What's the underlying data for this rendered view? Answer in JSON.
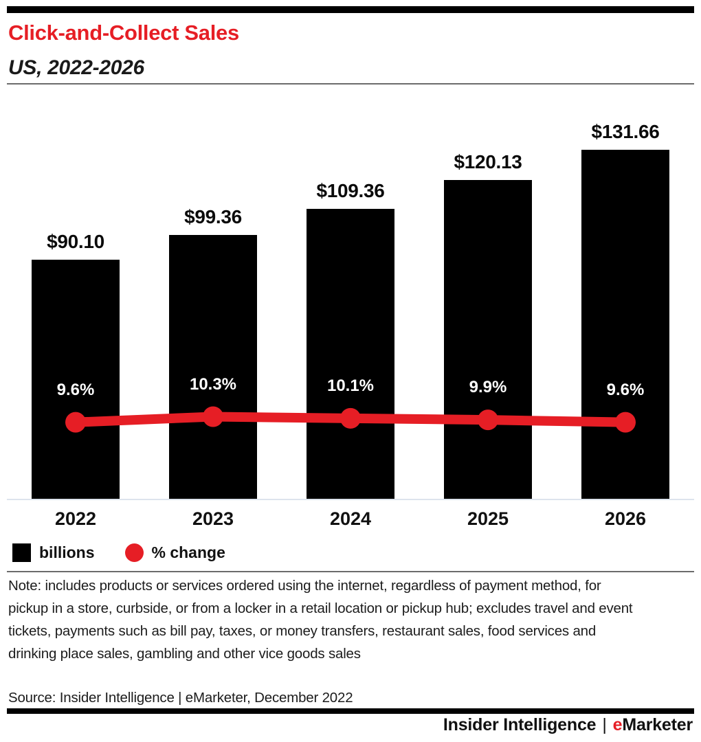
{
  "header": {
    "title": "Click-and-Collect Sales",
    "subtitle": "US, 2022-2026"
  },
  "chart_data": {
    "type": "bar",
    "title": "Click-and-Collect Sales",
    "subtitle": "US, 2022-2026",
    "categories": [
      "2022",
      "2023",
      "2024",
      "2025",
      "2026"
    ],
    "series": [
      {
        "name": "billions",
        "type": "bar",
        "values": [
          90.1,
          99.36,
          109.36,
          120.13,
          131.66
        ],
        "labels": [
          "$90.10",
          "$99.36",
          "$109.36",
          "$120.13",
          "$131.66"
        ],
        "color": "#000000"
      },
      {
        "name": "% change",
        "type": "line",
        "values": [
          9.6,
          10.3,
          10.1,
          9.9,
          9.6
        ],
        "labels": [
          "9.6%",
          "10.3%",
          "10.1%",
          "9.9%",
          "9.6%"
        ],
        "color": "#e61e25"
      }
    ],
    "xlabel": "",
    "ylabel": "",
    "ylim": [
      0,
      140
    ],
    "grid": false,
    "legend_position": "bottom",
    "legend": [
      {
        "label": "billions",
        "swatch": "square",
        "color": "#000000"
      },
      {
        "label": "% change",
        "swatch": "circle",
        "color": "#e61e25"
      }
    ]
  },
  "note": "Note: includes products or services ordered using the internet, regardless of payment method, for pickup in a store, curbside, or from a locker in a retail location or pickup hub; excludes travel and event tickets, payments such as bill pay, taxes, or money transfers, restaurant sales, food services and drinking place sales, gambling and other vice goods sales",
  "source": "Source: Insider Intelligence | eMarketer, December 2022",
  "footer": {
    "brand_left": "Insider Intelligence",
    "separator": "|",
    "brand_e": "e",
    "brand_rest": "Marketer"
  },
  "colors": {
    "accent_red": "#e61e25",
    "bar_black": "#000000",
    "divider_gray": "#6b6b6b",
    "axis_line": "#dde4ed"
  }
}
